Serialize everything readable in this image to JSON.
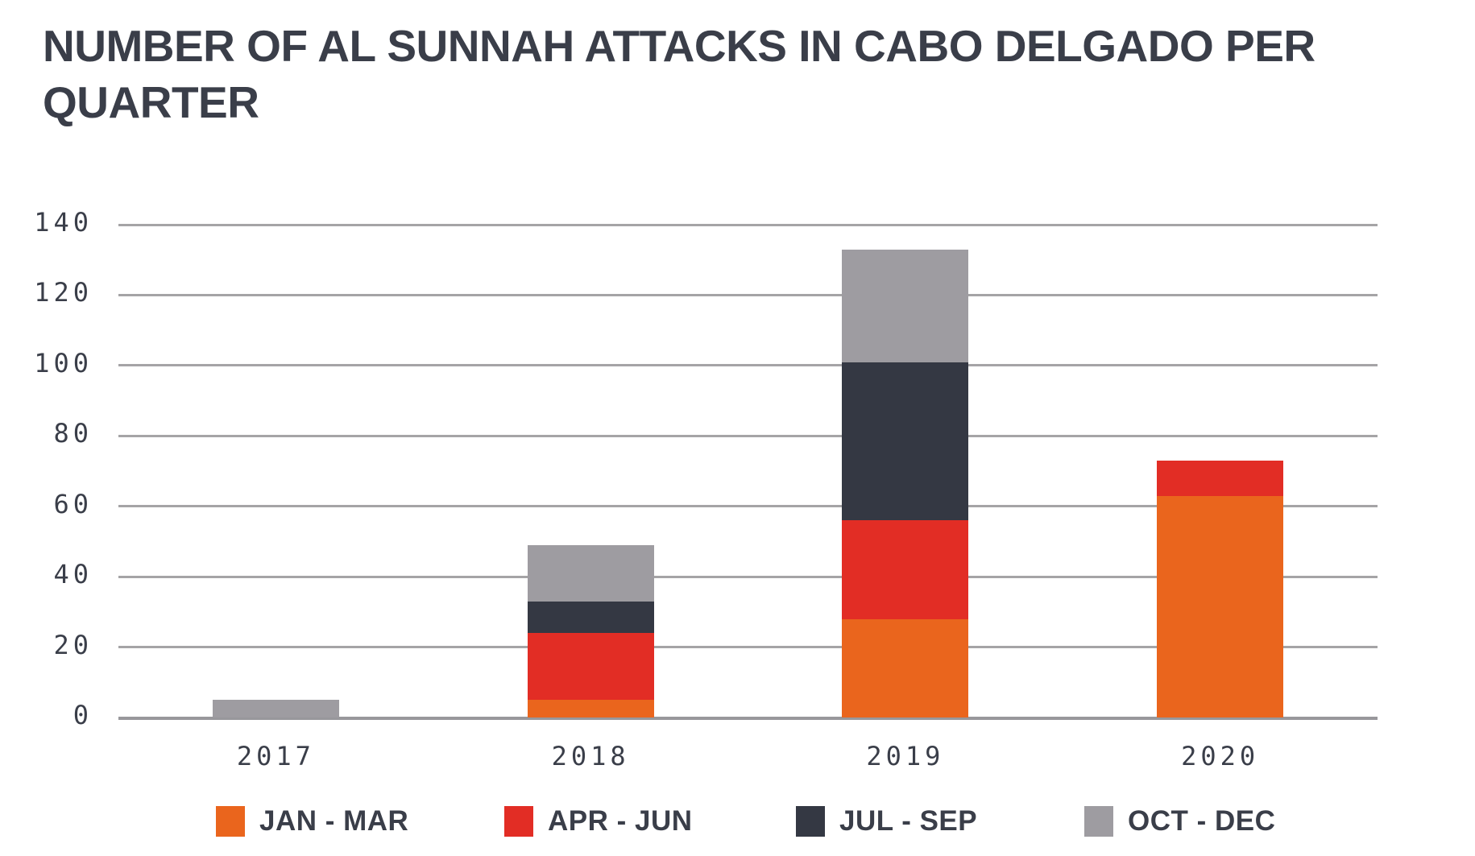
{
  "title": "NUMBER OF AL SUNNAH ATTACKS IN CABO DELGADO PER QUARTER",
  "chart_data": {
    "type": "bar",
    "stacked": true,
    "title": "NUMBER OF AL SUNNAH ATTACKS IN CABO DELGADO PER QUARTER",
    "categories": [
      "2017",
      "2018",
      "2019",
      "2020"
    ],
    "series": [
      {
        "name": "JAN - MAR",
        "color": "#EA651D",
        "values": [
          0,
          5,
          28,
          63
        ]
      },
      {
        "name": "APR - JUN",
        "color": "#E22D25",
        "values": [
          0,
          19,
          28,
          10
        ]
      },
      {
        "name": "JUL - SEP",
        "color": "#343843",
        "values": [
          0,
          9,
          45,
          0
        ]
      },
      {
        "name": "OCT - DEC",
        "color": "#9E9CA1",
        "values": [
          5,
          16,
          32,
          0
        ]
      }
    ],
    "ylim": [
      0,
      140
    ],
    "yticks": [
      0,
      20,
      40,
      60,
      80,
      100,
      120,
      140
    ],
    "xlabel": "",
    "ylabel": "",
    "grid": true,
    "legend_position": "bottom"
  },
  "colors": {
    "text": "#3A3E49",
    "gridline": "#A5A4A6",
    "axis_line": "#98979B",
    "background": "#FFFFFF"
  }
}
